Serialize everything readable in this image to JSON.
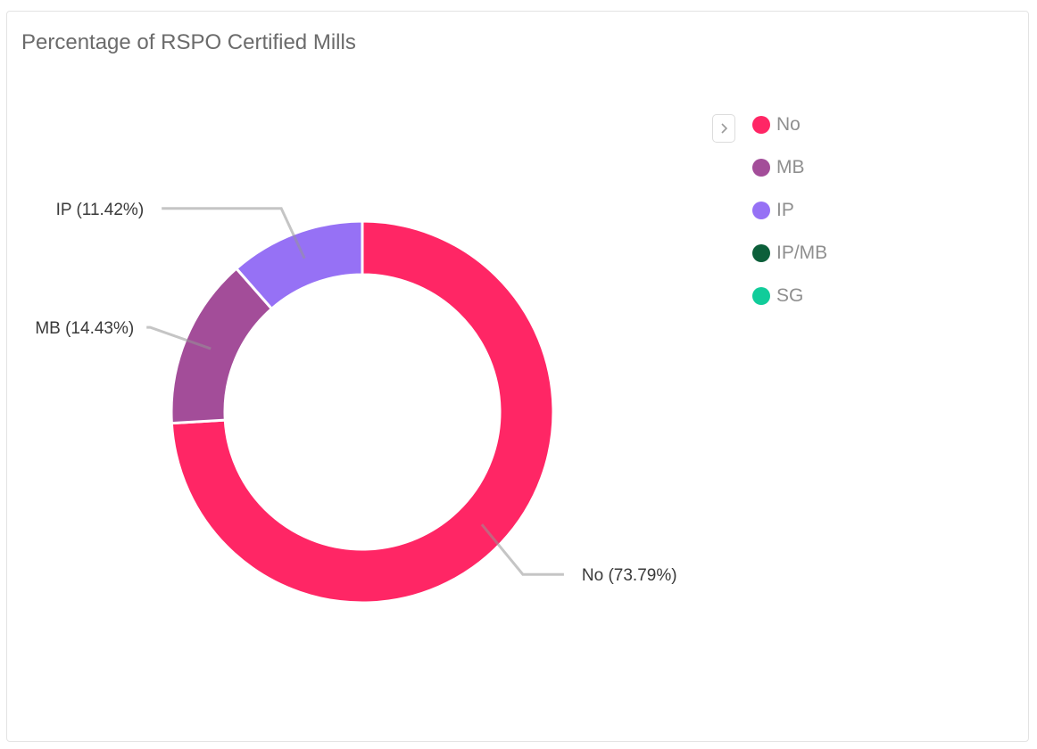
{
  "card": {
    "title": "Percentage of RSPO Certified Mills"
  },
  "legend": {
    "toggle_icon": "chevron-right-icon",
    "items": [
      {
        "label": "No",
        "color": "#ff2665"
      },
      {
        "label": "MB",
        "color": "#a34d99"
      },
      {
        "label": "IP",
        "color": "#9671f5"
      },
      {
        "label": "IP/MB",
        "color": "#0c5f3a"
      },
      {
        "label": "SG",
        "color": "#11cc9a"
      }
    ]
  },
  "chart_data": {
    "type": "pie",
    "donut": true,
    "title": "Percentage of RSPO Certified Mills",
    "legend_position": "top-right",
    "categories": [
      "No",
      "MB",
      "IP",
      "IP/MB",
      "SG"
    ],
    "values": [
      73.79,
      14.43,
      11.42,
      0,
      0
    ],
    "unit": "%",
    "colors": [
      "#ff2665",
      "#a34d99",
      "#9671f5",
      "#0c5f3a",
      "#11cc9a"
    ],
    "data_labels": [
      {
        "category": "No",
        "text": "No (73.79%)"
      },
      {
        "category": "MB",
        "text": "MB (14.43%)"
      },
      {
        "category": "IP",
        "text": "IP (11.42%)"
      }
    ]
  }
}
